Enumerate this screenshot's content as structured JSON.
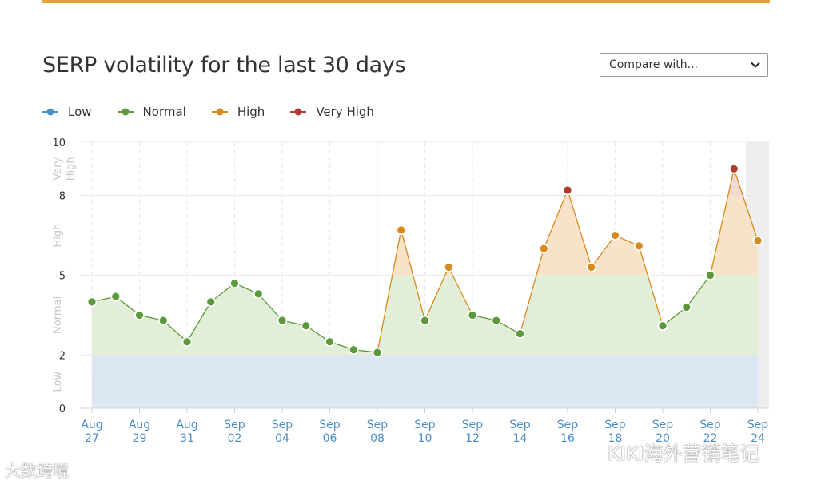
{
  "header": {
    "title": "SERP volatility for the last 30 days",
    "compare_label": "Compare with..."
  },
  "legend": [
    {
      "label": "Low",
      "color": "#4a90c9"
    },
    {
      "label": "Normal",
      "color": "#5b9a3a"
    },
    {
      "label": "High",
      "color": "#d88a1e"
    },
    {
      "label": "Very High",
      "color": "#b03a2e"
    }
  ],
  "zone_labels": {
    "low": "Low",
    "normal": "Normal",
    "high": "High",
    "very_high": "Very High"
  },
  "chart_data": {
    "type": "area",
    "title": "SERP volatility for the last 30 days",
    "ylim": [
      0,
      10
    ],
    "yticks": [
      0,
      2,
      5,
      8,
      10
    ],
    "zones": [
      {
        "name": "Low",
        "from": 0,
        "to": 2,
        "color": "#dbe8f3"
      },
      {
        "name": "Normal",
        "from": 2,
        "to": 5,
        "color": "#e2eed7"
      },
      {
        "name": "High",
        "from": 5,
        "to": 8,
        "color": "#f8e3c8"
      },
      {
        "name": "Very High",
        "from": 8,
        "to": 10,
        "color": "#f2d9d4"
      }
    ],
    "x_labels": [
      {
        "month": "Aug",
        "day": "27"
      },
      {
        "month": "Aug",
        "day": "29"
      },
      {
        "month": "Aug",
        "day": "31"
      },
      {
        "month": "Sep",
        "day": "02"
      },
      {
        "month": "Sep",
        "day": "04"
      },
      {
        "month": "Sep",
        "day": "06"
      },
      {
        "month": "Sep",
        "day": "08"
      },
      {
        "month": "Sep",
        "day": "10"
      },
      {
        "month": "Sep",
        "day": "12"
      },
      {
        "month": "Sep",
        "day": "14"
      },
      {
        "month": "Sep",
        "day": "16"
      },
      {
        "month": "Sep",
        "day": "18"
      },
      {
        "month": "Sep",
        "day": "20"
      },
      {
        "month": "Sep",
        "day": "22"
      },
      {
        "month": "Sep",
        "day": "24"
      }
    ],
    "dates": [
      "Aug 27",
      "Aug 28",
      "Aug 29",
      "Aug 30",
      "Aug 31",
      "Sep 01",
      "Sep 02",
      "Sep 03",
      "Sep 04",
      "Sep 05",
      "Sep 06",
      "Sep 07",
      "Sep 08",
      "Sep 09",
      "Sep 10",
      "Sep 11",
      "Sep 12",
      "Sep 13",
      "Sep 14",
      "Sep 15",
      "Sep 16",
      "Sep 17",
      "Sep 18",
      "Sep 19",
      "Sep 20",
      "Sep 21",
      "Sep 22",
      "Sep 23",
      "Sep 24"
    ],
    "values": [
      4.0,
      4.2,
      3.5,
      3.3,
      2.5,
      4.0,
      4.7,
      4.3,
      3.3,
      3.1,
      2.5,
      2.2,
      2.1,
      6.7,
      3.3,
      5.3,
      3.5,
      3.3,
      2.8,
      6.0,
      8.2,
      5.3,
      6.5,
      6.1,
      3.1,
      3.8,
      5.0,
      9.0,
      6.3
    ],
    "colors": {
      "line": "#5b9a3a",
      "low": "#4a90c9",
      "normal": "#5b9a3a",
      "high": "#d88a1e",
      "very_high": "#b03a2e"
    },
    "highlight_last": true
  },
  "watermarks": {
    "right": "KIKI海外营销笔记",
    "left": "大数跨境"
  }
}
